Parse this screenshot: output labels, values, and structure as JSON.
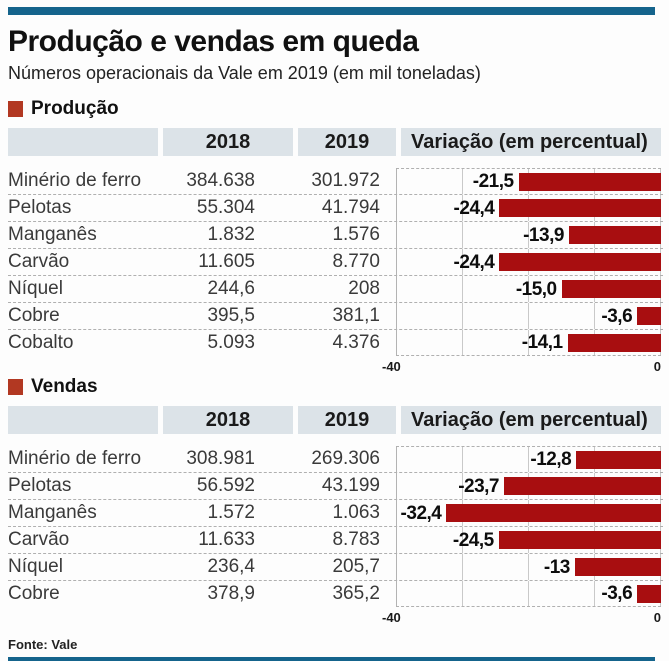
{
  "page": {
    "title": "Produção e vendas em queda",
    "subtitle": "Números operacionais da Vale em 2019 (em mil toneladas)",
    "source": "Fonte: Vale",
    "colors": {
      "rule_blue": "#15648c",
      "bar_red": "#a80e10",
      "bullet_red": "#b23822",
      "header_bg": "#dce3e8"
    }
  },
  "columns": {
    "col_2018": "2018",
    "col_2019": "2019",
    "variation": "Variação (em percentual)"
  },
  "axis": {
    "min_label": "-40",
    "max_label": "0",
    "min": -40,
    "max": 0
  },
  "chart_data": [
    {
      "type": "bar",
      "title": "Produção",
      "orientation": "horizontal",
      "xlim": [
        -40,
        0
      ],
      "grid": "vertical lines at -30, -20, -10",
      "categories": [
        "Minério de ferro",
        "Pelotas",
        "Manganês",
        "Carvão",
        "Níquel",
        "Cobre",
        "Cobalto"
      ],
      "series": [
        {
          "name": "2018",
          "values": [
            "384.638",
            "55.304",
            "1.832",
            "11.605",
            "244,6",
            "395,5",
            "5.093"
          ]
        },
        {
          "name": "2019",
          "values": [
            "301.972",
            "41.794",
            "1.576",
            "8.770",
            "208",
            "381,1",
            "4.376"
          ]
        }
      ],
      "variation_labels": [
        "-21,5",
        "-24,4",
        "-13,9",
        "-24,4",
        "-15,0",
        "-3,6",
        "-14,1"
      ],
      "variation_pct": [
        -21.5,
        -24.4,
        -13.9,
        -24.4,
        -15.0,
        -3.6,
        -14.1
      ]
    },
    {
      "type": "bar",
      "title": "Vendas",
      "orientation": "horizontal",
      "xlim": [
        -40,
        0
      ],
      "grid": "vertical lines at -30, -20, -10",
      "categories": [
        "Minério de ferro",
        "Pelotas",
        "Manganês",
        "Carvão",
        "Níquel",
        "Cobre"
      ],
      "series": [
        {
          "name": "2018",
          "values": [
            "308.981",
            "56.592",
            "1.572",
            "11.633",
            "236,4",
            "378,9"
          ]
        },
        {
          "name": "2019",
          "values": [
            "269.306",
            "43.199",
            "1.063",
            "8.783",
            "205,7",
            "365,2"
          ]
        }
      ],
      "variation_labels": [
        "-12,8",
        "-23,7",
        "-32,4",
        "-24,5",
        "-13",
        "-3,6"
      ],
      "variation_pct": [
        -12.8,
        -23.7,
        -32.4,
        -24.5,
        -13,
        -3.6
      ]
    }
  ]
}
